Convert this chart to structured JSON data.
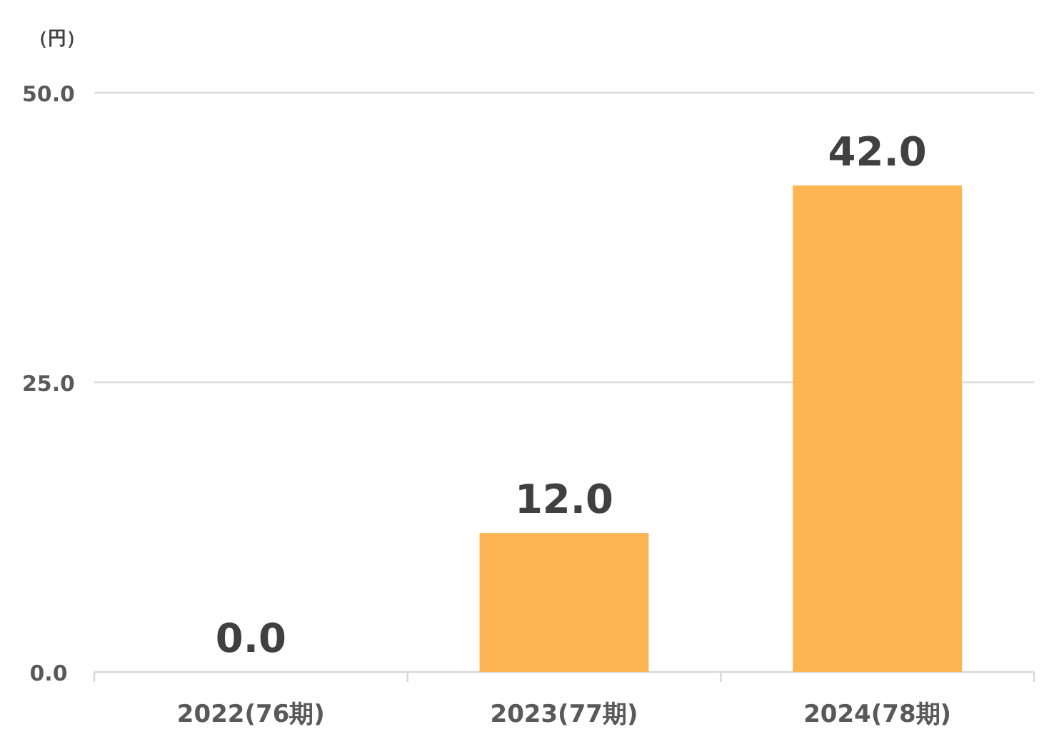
{
  "chart_data": {
    "type": "bar",
    "ylabel": "（円）",
    "categories": [
      "2022(76期)",
      "2023(77期)",
      "2024(78期)"
    ],
    "values": [
      0,
      12,
      42
    ],
    "value_labels": [
      "0.0",
      "12.0",
      "42.0"
    ],
    "color": "#fdb553",
    "ylim": [
      0,
      50
    ],
    "yticks": [
      {
        "value": 0,
        "label": "0.0"
      },
      {
        "value": 25,
        "label": "25.0"
      },
      {
        "value": 50,
        "label": "50.0"
      }
    ],
    "grid": "y"
  }
}
